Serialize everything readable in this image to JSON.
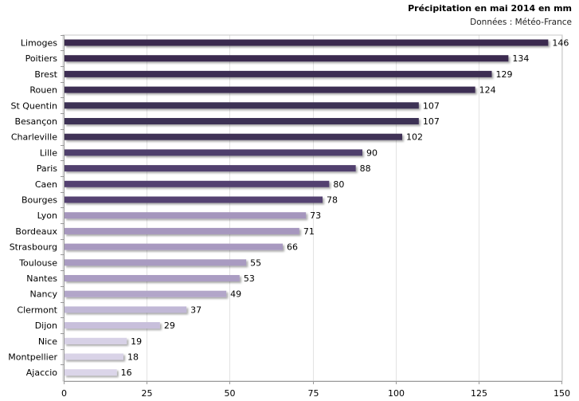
{
  "chart_data": {
    "type": "bar",
    "orientation": "horizontal",
    "title": "Précipitation en mai 2014 en mm",
    "subtitle": "Données : Météo-France",
    "categories": [
      "Limoges",
      "Poitiers",
      "Brest",
      "Rouen",
      "St Quentin",
      "Besançon",
      "Charleville",
      "Lille",
      "Paris",
      "Caen",
      "Bourges",
      "Lyon",
      "Bordeaux",
      "Strasbourg",
      "Toulouse",
      "Nantes",
      "Nancy",
      "Clermont",
      "Dijon",
      "Nice",
      "Montpellier",
      "Ajaccio"
    ],
    "values": [
      146,
      134,
      129,
      124,
      107,
      107,
      102,
      90,
      88,
      80,
      78,
      73,
      71,
      66,
      55,
      53,
      49,
      37,
      29,
      19,
      18,
      16
    ],
    "xlim": [
      0,
      150
    ],
    "xticks": [
      0,
      25,
      50,
      75,
      100,
      125,
      150
    ],
    "grid": "vertical",
    "legend": "none",
    "bar_colors": [
      "#3a2c4f",
      "#3a2c4f",
      "#3c2e53",
      "#3c2e53",
      "#3e3055",
      "#3e3055",
      "#403257",
      "#4f3f6c",
      "#513f6e",
      "#524070",
      "#544272",
      "#a596bd",
      "#a697be",
      "#a899c0",
      "#a99bc1",
      "#ab9dc3",
      "#b2a6c9",
      "#c1b8d6",
      "#c8bfdb",
      "#d7d1e6",
      "#d9d3e7",
      "#dbd5e9"
    ]
  }
}
